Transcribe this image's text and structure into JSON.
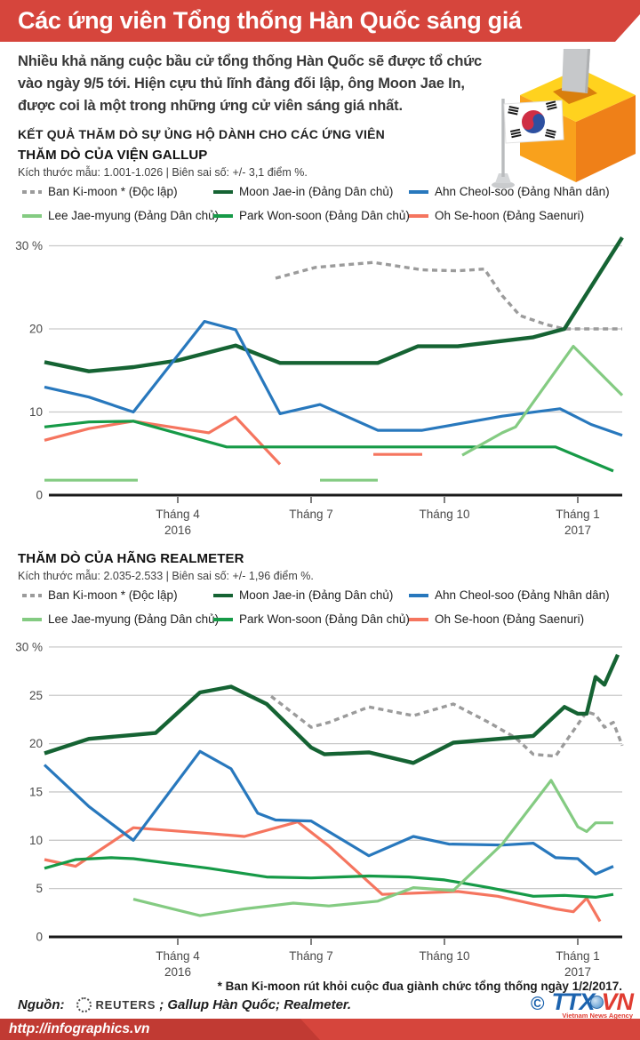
{
  "header": {
    "title": "Các ứng viên Tổng thống Hàn Quốc sáng giá"
  },
  "intro": "Nhiều khả năng cuộc bầu cử tổng thống Hàn Quốc sẽ được tổ chức vào ngày 9/5 tới. Hiện cựu thủ lĩnh đảng đối lập, ông Moon Jae In, được coi là một trong những ứng cử viên sáng giá nhất.",
  "section_title": "KẾT QUẢ THĂM DÒ SỰ ỦNG HỘ DÀNH CHO CÁC ỨNG VIÊN",
  "footnote": "* Ban Ki-moon rút khỏi cuộc đua giành chức tổng thống ngày 1/2/2017.",
  "source": {
    "label": "Nguồn:",
    "reuters": "REUTERS",
    "rest": "; Gallup Hàn Quốc; Realmeter."
  },
  "logo": {
    "copyright": "©",
    "ttx": "TTX",
    "vn": "VN",
    "caption": "Vietnam News Agency"
  },
  "footer": {
    "url": "http://infographics.vn"
  },
  "candidates": [
    {
      "id": "ban",
      "label": "Ban Ki-moon * (Độc lập)",
      "color": "#9b9b9b",
      "dashed": true
    },
    {
      "id": "moon",
      "label": "Moon Jae-in (Đảng Dân chủ)",
      "color": "#156333",
      "dashed": false
    },
    {
      "id": "ahn",
      "label": "Ahn Cheol-soo (Đảng Nhân dân)",
      "color": "#2878bd",
      "dashed": false
    },
    {
      "id": "lee",
      "label": "Lee Jae-myung (Đảng Dân chủ)",
      "color": "#84cb82",
      "dashed": false
    },
    {
      "id": "park",
      "label": "Park Won-soon (Đảng Dân chủ)",
      "color": "#169a47",
      "dashed": false
    },
    {
      "id": "oh",
      "label": "Oh Se-hoon (Đảng Saenuri)",
      "color": "#f5755f",
      "dashed": false
    }
  ],
  "chart_data": [
    {
      "type": "line",
      "title": "THĂM DÒ CỦA VIỆN GALLUP",
      "sample_note": "Kích thước mẫu: 1.001-1.026 | Biên sai số: +/- 3,1 điểm %.",
      "x_unit": "months, 0 = Tháng 1/2016 … 13 = Tháng 2/2017",
      "ylim": [
        0,
        31
      ],
      "ylabel": "%",
      "grid": true,
      "legend_position": "top",
      "x_ticks": [
        {
          "m": 3,
          "label": "Tháng 4",
          "sublabel": "2016"
        },
        {
          "m": 6,
          "label": "Tháng 7"
        },
        {
          "m": 9,
          "label": "Tháng 10"
        },
        {
          "m": 12,
          "label": "Tháng 1",
          "sublabel": "2017"
        }
      ],
      "y_gridlines": [
        {
          "v": 0,
          "label": "0"
        },
        {
          "v": 10,
          "label": "10"
        },
        {
          "v": 20,
          "label": "20"
        },
        {
          "v": 30,
          "label": "30 %"
        }
      ],
      "series": [
        {
          "candidate": "ban",
          "segments": [
            [
              [
                5.2,
                26.1
              ],
              [
                6.1,
                27.4
              ],
              [
                7.4,
                28.0
              ],
              [
                8.5,
                27.1
              ],
              [
                9.3,
                27.0
              ],
              [
                9.9,
                27.2
              ],
              [
                10.3,
                24.0
              ],
              [
                10.7,
                21.6
              ],
              [
                11.3,
                20.5
              ],
              [
                11.7,
                20.0
              ],
              [
                13,
                20.0
              ]
            ]
          ]
        },
        {
          "candidate": "oh",
          "segments": [
            [
              [
                0,
                6.6
              ],
              [
                1,
                8.0
              ],
              [
                2,
                8.9
              ],
              [
                3.7,
                7.5
              ],
              [
                4.3,
                9.4
              ],
              [
                5.3,
                3.7
              ]
            ],
            [
              [
                7.4,
                4.9
              ],
              [
                8.5,
                4.9
              ]
            ]
          ]
        },
        {
          "candidate": "park",
          "segments": [
            [
              [
                0,
                8.2
              ],
              [
                1,
                8.8
              ],
              [
                2,
                8.9
              ],
              [
                4.1,
                5.8
              ],
              [
                11.5,
                5.8
              ],
              [
                12.8,
                2.9
              ]
            ]
          ]
        },
        {
          "candidate": "moon",
          "segments": [
            [
              [
                0,
                16.0
              ],
              [
                1,
                14.9
              ],
              [
                2,
                15.4
              ],
              [
                3,
                16.2
              ],
              [
                4.3,
                18.0
              ],
              [
                5.3,
                15.9
              ],
              [
                7.5,
                15.9
              ],
              [
                8.4,
                17.9
              ],
              [
                9.3,
                17.9
              ],
              [
                11,
                19.0
              ],
              [
                11.7,
                20.0
              ],
              [
                13,
                31.0
              ]
            ]
          ]
        },
        {
          "candidate": "ahn",
          "segments": [
            [
              [
                0,
                13.0
              ],
              [
                1,
                11.8
              ],
              [
                2,
                10.0
              ],
              [
                3.6,
                20.9
              ],
              [
                4.3,
                19.9
              ],
              [
                5.3,
                9.8
              ],
              [
                6.2,
                10.9
              ],
              [
                7.5,
                7.8
              ],
              [
                8.5,
                7.8
              ],
              [
                10.3,
                9.5
              ],
              [
                11.6,
                10.4
              ],
              [
                12.3,
                8.5
              ],
              [
                13,
                7.2
              ]
            ]
          ]
        },
        {
          "candidate": "lee",
          "segments": [
            [
              [
                0,
                1.8
              ],
              [
                2.1,
                1.8
              ]
            ],
            [
              [
                6.2,
                1.8
              ],
              [
                7.5,
                1.8
              ]
            ],
            [
              [
                9.4,
                4.8
              ],
              [
                10.3,
                7.5
              ],
              [
                10.6,
                8.2
              ],
              [
                11.9,
                17.9
              ],
              [
                13,
                12.0
              ]
            ]
          ]
        }
      ]
    },
    {
      "type": "line",
      "title": "THĂM DÒ CỦA HÃNG REALMETER",
      "sample_note": "Kích thước mẫu: 2.035-2.533 | Biên sai số: +/- 1,96 điểm %.",
      "x_unit": "months, 0 = Tháng 1/2016 … 13 = Tháng 2/2017",
      "ylim": [
        0,
        30
      ],
      "ylabel": "%",
      "grid": true,
      "legend_position": "top",
      "x_ticks": [
        {
          "m": 3,
          "label": "Tháng 4",
          "sublabel": "2016"
        },
        {
          "m": 6,
          "label": "Tháng 7"
        },
        {
          "m": 9,
          "label": "Tháng 10"
        },
        {
          "m": 12,
          "label": "Tháng 1",
          "sublabel": "2017"
        }
      ],
      "y_gridlines": [
        {
          "v": 0,
          "label": "0"
        },
        {
          "v": 5,
          "label": "5"
        },
        {
          "v": 10,
          "label": "10"
        },
        {
          "v": 15,
          "label": "15"
        },
        {
          "v": 20,
          "label": "20"
        },
        {
          "v": 25,
          "label": "25"
        },
        {
          "v": 30,
          "label": "30 %"
        }
      ],
      "series": [
        {
          "candidate": "ban",
          "segments": [
            [
              [
                5.1,
                24.9
              ],
              [
                6,
                21.7
              ],
              [
                6.4,
                22.2
              ],
              [
                7.3,
                23.8
              ],
              [
                8.3,
                22.9
              ],
              [
                9.2,
                24.1
              ],
              [
                10,
                22.2
              ],
              [
                10.6,
                20.6
              ],
              [
                11,
                18.9
              ],
              [
                11.5,
                18.7
              ],
              [
                12.2,
                23.3
              ],
              [
                12.4,
                23.0
              ],
              [
                12.6,
                21.7
              ],
              [
                12.8,
                22.2
              ],
              [
                13,
                19.8
              ]
            ]
          ]
        },
        {
          "candidate": "oh",
          "segments": [
            [
              [
                0,
                8.0
              ],
              [
                0.7,
                7.3
              ],
              [
                2,
                11.3
              ],
              [
                3.7,
                10.7
              ],
              [
                4.5,
                10.4
              ],
              [
                5.7,
                11.9
              ],
              [
                6.4,
                9.4
              ],
              [
                7.6,
                4.4
              ],
              [
                9.3,
                4.7
              ],
              [
                10.2,
                4.2
              ],
              [
                11.5,
                2.9
              ],
              [
                11.9,
                2.6
              ],
              [
                12.2,
                4.0
              ],
              [
                12.5,
                1.6
              ]
            ]
          ]
        },
        {
          "candidate": "park",
          "segments": [
            [
              [
                0,
                7.1
              ],
              [
                0.7,
                8.0
              ],
              [
                1.5,
                8.2
              ],
              [
                2,
                8.1
              ],
              [
                3.7,
                7.1
              ],
              [
                5,
                6.2
              ],
              [
                6,
                6.1
              ],
              [
                7.3,
                6.3
              ],
              [
                8.2,
                6.2
              ],
              [
                9,
                5.9
              ],
              [
                10,
                5.1
              ],
              [
                11,
                4.2
              ],
              [
                11.7,
                4.3
              ],
              [
                12.4,
                4.1
              ],
              [
                12.8,
                4.4
              ]
            ]
          ]
        },
        {
          "candidate": "moon",
          "segments": [
            [
              [
                0,
                19.0
              ],
              [
                1,
                20.5
              ],
              [
                2,
                20.9
              ],
              [
                2.5,
                21.1
              ],
              [
                3.5,
                25.3
              ],
              [
                4.2,
                25.9
              ],
              [
                5,
                24.1
              ],
              [
                6,
                19.6
              ],
              [
                6.3,
                18.9
              ],
              [
                7.3,
                19.1
              ],
              [
                8.3,
                18.0
              ],
              [
                9.2,
                20.1
              ],
              [
                11,
                20.8
              ],
              [
                11.7,
                23.8
              ],
              [
                12,
                23.1
              ],
              [
                12.2,
                23.1
              ],
              [
                12.4,
                26.9
              ],
              [
                12.6,
                26.1
              ],
              [
                12.9,
                29.2
              ]
            ]
          ]
        },
        {
          "candidate": "ahn",
          "segments": [
            [
              [
                0,
                17.8
              ],
              [
                1,
                13.5
              ],
              [
                2,
                10.0
              ],
              [
                3.5,
                19.2
              ],
              [
                4.2,
                17.4
              ],
              [
                4.8,
                12.8
              ],
              [
                5.2,
                12.1
              ],
              [
                6,
                12.0
              ],
              [
                7.3,
                8.4
              ],
              [
                8.3,
                10.4
              ],
              [
                9.1,
                9.6
              ],
              [
                10.3,
                9.5
              ],
              [
                11,
                9.7
              ],
              [
                11.5,
                8.2
              ],
              [
                12,
                8.1
              ],
              [
                12.4,
                6.5
              ],
              [
                12.8,
                7.3
              ]
            ]
          ]
        },
        {
          "candidate": "lee",
          "segments": [
            [
              [
                2,
                3.9
              ],
              [
                3.5,
                2.2
              ],
              [
                4.5,
                2.9
              ],
              [
                5.6,
                3.5
              ],
              [
                6.4,
                3.2
              ],
              [
                7.5,
                3.7
              ],
              [
                8.3,
                5.1
              ],
              [
                9.2,
                4.8
              ],
              [
                10.3,
                9.6
              ],
              [
                11.4,
                16.2
              ],
              [
                12,
                11.4
              ],
              [
                12.2,
                10.9
              ],
              [
                12.4,
                11.8
              ],
              [
                12.8,
                11.8
              ]
            ]
          ]
        }
      ]
    }
  ]
}
